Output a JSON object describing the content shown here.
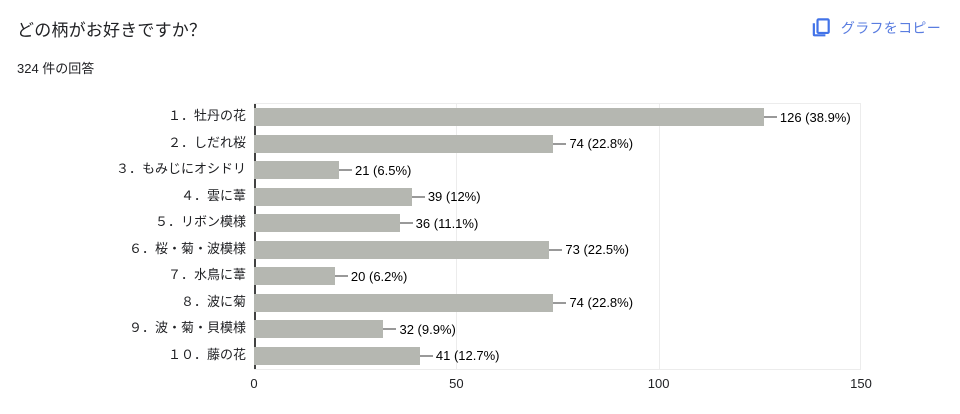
{
  "header": {
    "title": "どの柄がお好きですか？",
    "subtitle": "324 件の回答",
    "copy_button_label": "グラフをコピー",
    "accent_color": "#4273e8"
  },
  "chart_data": {
    "type": "bar",
    "orientation": "horizontal",
    "title": "どの柄がお好きですか？",
    "categories": [
      "１．牡丹の花",
      "２．しだれ桜",
      "３．もみじにオシドリ",
      "４．雲に葦",
      "５．リボン模様",
      "６．桜・菊・波模様",
      "７．水鳥に葦",
      "８．波に菊",
      "９．波・菊・貝模様",
      "１０．藤の花"
    ],
    "values": [
      126,
      74,
      21,
      39,
      36,
      73,
      20,
      74,
      32,
      41
    ],
    "value_labels": [
      "126 (38.9%)",
      "74 (22.8%)",
      "21 (6.5%)",
      "39 (12%)",
      "36 (11.1%)",
      "73 (22.5%)",
      "20 (6.2%)",
      "74 (22.8%)",
      "32 (9.9%)",
      "41 (12.7%)"
    ],
    "xlim": [
      0,
      150
    ],
    "x_ticks": [
      "0",
      "50",
      "100",
      "150"
    ],
    "bar_color": "#b5b7b1",
    "leader_color": "#999999",
    "grid": true,
    "legend": "none"
  }
}
